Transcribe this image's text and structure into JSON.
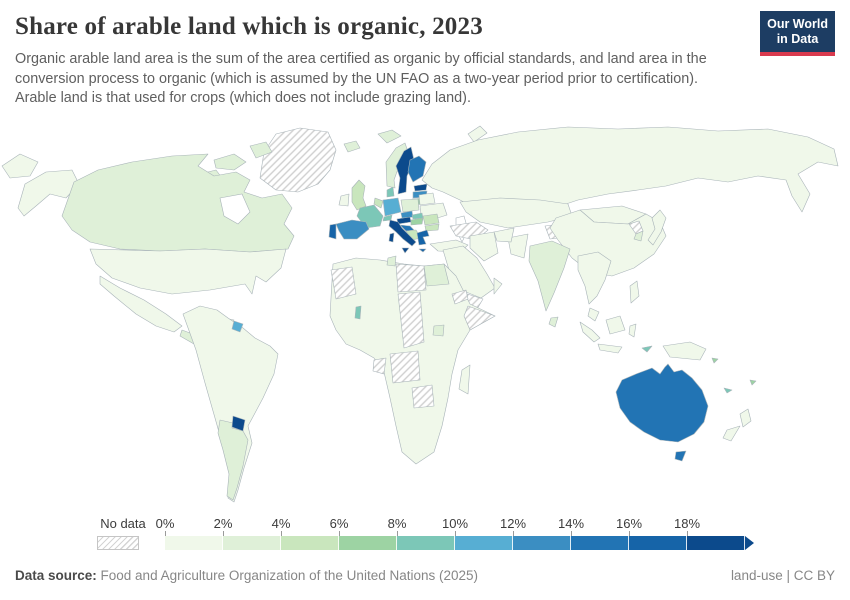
{
  "header": {
    "title": "Share of arable land which is organic, 2023",
    "subtitle_lines": [
      "Organic arable land area is the sum of the area certified as organic by official standards, and land area in the",
      "conversion process to organic (which is assumed by the UN FAO as a two-year period prior to certification).",
      "Arable land is that used for crops (which does not include grazing land)."
    ],
    "logo_line1": "Our World",
    "logo_line2": "in Data",
    "logo_bg": "#1d3d63",
    "logo_accent": "#d93a4e"
  },
  "legend": {
    "no_data_label": "No data",
    "tick_labels": [
      "0%",
      "2%",
      "4%",
      "6%",
      "8%",
      "10%",
      "12%",
      "14%",
      "16%",
      "18%"
    ]
  },
  "map": {
    "ocean": "#ffffff",
    "border_color": "#a9b4b9",
    "hatch_line_color": "#cfcfcf"
  },
  "chart_data": {
    "type": "heatmap",
    "subtype": "choropleth-world-map",
    "title": "Share of arable land which is organic, 2023",
    "unit": "%",
    "bin_ranges": [
      "0-2%",
      "2-4%",
      "4-6%",
      "6-8%",
      "8-10%",
      "10-12%",
      "12-14%",
      "14-16%",
      "16-18%",
      "18%+"
    ],
    "bin_colors": [
      "#f0f8ea",
      "#dff0d8",
      "#c9e6bd",
      "#9dd3a3",
      "#7cc7b7",
      "#57aed3",
      "#3b8ec2",
      "#2274b4",
      "#1664a8",
      "#0c4a8c"
    ],
    "no_data_label": "No data",
    "legend_position": "bottom",
    "countries": {
      "greenland": "no_data",
      "arctic_islands": 1,
      "svalbard": 1,
      "novaya_zemlya": 0,
      "canada": 1,
      "usa": 0,
      "mexico": 0,
      "central_america": 1,
      "cuba": 1,
      "hispaniola": 1,
      "south_america": 0,
      "argentina": 1,
      "uruguay": 9,
      "french_guiana": 5,
      "iceland": 1,
      "norway": 1,
      "sweden": 9,
      "finland": 7,
      "estonia": 9,
      "latvia": 6,
      "lithuania": 3,
      "uk": 2,
      "ireland": 0,
      "denmark": 4,
      "germany": 5,
      "benelux": 2,
      "poland": 1,
      "belarus": 0,
      "ukraine": 0,
      "france": 4,
      "switzerland": 4,
      "czechia": 6,
      "slovakia": 4,
      "austria": 9,
      "hungary": 3,
      "romania": 2,
      "bulgaria": 2,
      "slovenia_croatia": 7,
      "balkans": 2,
      "italy": 9,
      "greece": 8,
      "spain": 6,
      "portugal": 8,
      "turkey": 0,
      "russia": 0,
      "kazakhstan": 0,
      "turkmenistan_uzbekistan": "no_data",
      "kyrgyz_tajik": "no_data",
      "mongolia": 0,
      "china": 0,
      "japan": 0,
      "south_korea": 1,
      "north_korea": "no_data",
      "india": 1,
      "sri_lanka": 1,
      "pakistan": 0,
      "afghanistan": 0,
      "iran": 0,
      "middle_east": 0,
      "yemen": "no_data",
      "oman": 0,
      "se_asia": 0,
      "malaysia": 0,
      "philippines": 0,
      "indonesia": 0,
      "timor": 4,
      "new_guinea": 0,
      "solomon": 3,
      "africa": 0,
      "egypt": 1,
      "libya": "no_data",
      "tunisia": 1,
      "mauritania_wsahara": "no_data",
      "chad_car": "no_data",
      "eritrea": "no_data",
      "somalia": "no_data",
      "uganda": 1,
      "togo": 4,
      "gabon": "no_data",
      "angola": "no_data",
      "zimbabwe": "no_data",
      "madagascar": 0,
      "australia": 7,
      "tasmania": 7,
      "new_zealand": 0,
      "new_caledonia": 4,
      "fiji": 3
    }
  },
  "footer": {
    "source_label": "Data source:",
    "source_text": " Food and Agriculture Organization of the United Nations (2025)",
    "license": "land-use | CC BY"
  }
}
